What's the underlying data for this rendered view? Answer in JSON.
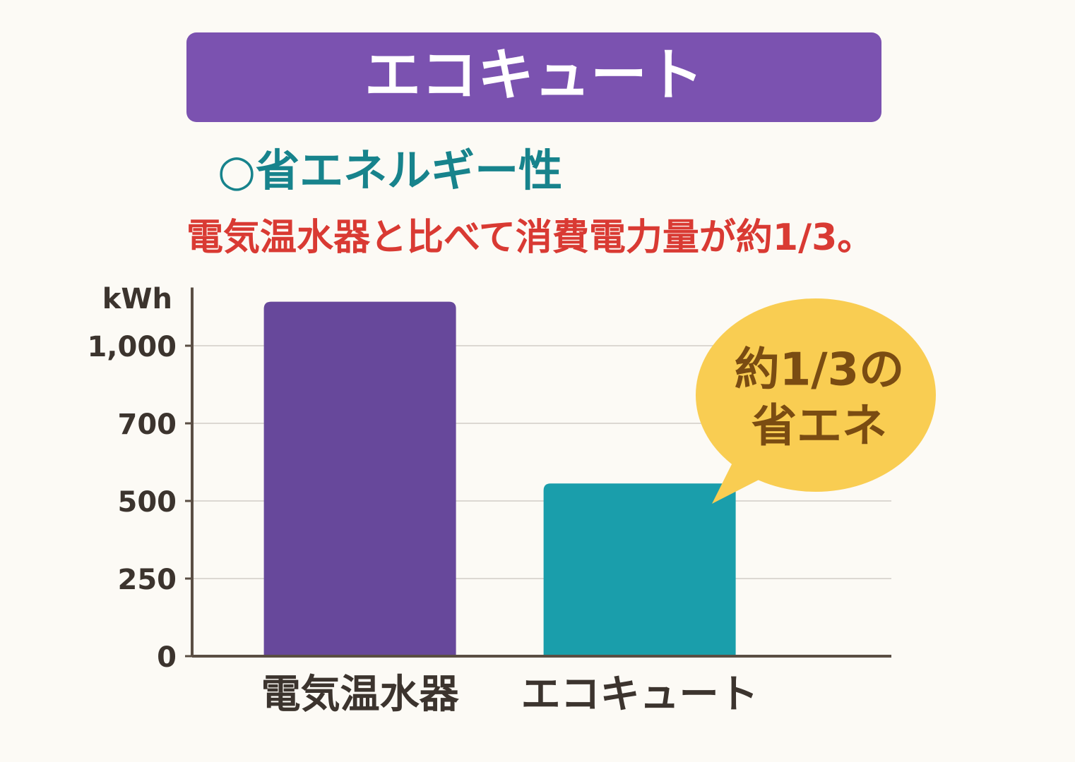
{
  "chart_data": {
    "type": "bar",
    "title": "エコキュート",
    "subtitle": "○省エネルギー性",
    "description": "電気温水器と比べて消費電力量が約1/3。",
    "y_label": "kWh",
    "categories": [
      "電気温水器",
      "エコキュート"
    ],
    "values": [
      1170,
      545
    ],
    "colors": [
      "#67489b",
      "#1a9eab"
    ],
    "ylim": [
      0,
      1225
    ],
    "yticks": [
      0,
      250,
      500,
      700,
      {
        "value": 1000,
        "label": "1,000"
      }
    ],
    "grid": true,
    "annotation": [
      "約1/3の",
      "省エネ"
    ]
  }
}
